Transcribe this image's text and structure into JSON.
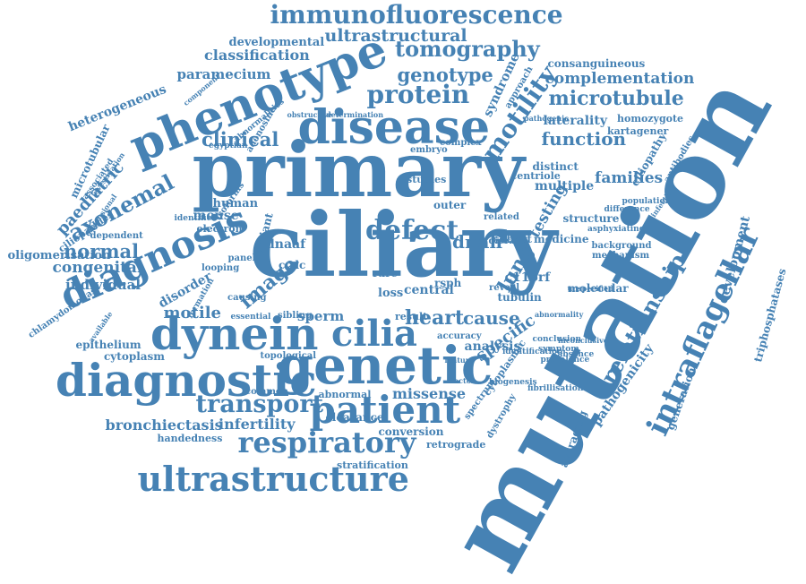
{
  "theme": {
    "word_color": "#4682b4",
    "background": "#ffffff"
  },
  "words": [
    "mutation",
    "ciliary",
    "primary",
    "genetic",
    "diagnostic",
    "phenotype",
    "disease",
    "dynein",
    "diagnosis",
    "patient",
    "ultrastructure",
    "respiratory",
    "cilia",
    "intraflagellar",
    "immunofluorescence",
    "relationship",
    "defect",
    "transport",
    "protein",
    "tomography",
    "function",
    "motility",
    "microtubule",
    "complementation",
    "ultrastructural",
    "genotype",
    "axonemal",
    "paediatric",
    "normal",
    "heart",
    "cause",
    "dnah",
    "families",
    "clinical",
    "classification",
    "paramecium",
    "developmental",
    "laterality",
    "heterogeneous",
    "congenital",
    "individual",
    "motile",
    "bronchiectasis",
    "infertility",
    "missense",
    "lung",
    "triphosphatases",
    "development",
    "pathogenicity",
    "generation",
    "averaging",
    "specific",
    "testing",
    "ciliopathy",
    "syndrome",
    "consanguineous",
    "homozygote",
    "kartagener",
    "microtubular",
    "oligomerisation",
    "chlamydomonas",
    "epithelium",
    "cytoplasm",
    "clearance",
    "handedness",
    "conversion",
    "retrograde",
    "stratification",
    "image",
    "mouse",
    "disorder",
    "variant",
    "sperm",
    "dnaaf",
    "loss",
    "central",
    "analysis",
    "c11orf",
    "tubulin",
    "molecular",
    "structure",
    "multiple",
    "distinct",
    "centriole",
    "cohort",
    "medicine",
    "outer",
    "ccdc",
    "rsph",
    "rare",
    "abnormal",
    "sibling",
    "result",
    "human",
    "isoforms",
    "adenosine",
    "dependent",
    "ciliopathies",
    "identifies",
    "electron",
    "panel",
    "looping",
    "formation",
    "causing",
    "essential",
    "egyptian",
    "complex",
    "embryo",
    "studies",
    "related",
    "reveal",
    "disease",
    "accuracy",
    "spectrum",
    "dystrophy",
    "biogenesis",
    "fibrillisation",
    "conclusion",
    "symptom",
    "absence",
    "prevalence",
    "background",
    "mechanism",
    "asphyxiating",
    "difference",
    "infection",
    "population",
    "antibodies",
    "cytoplasmic",
    "approach",
    "associated",
    "investigation",
    "dimensional",
    "topological",
    "common",
    "component",
    "abnormalities",
    "obstructive",
    "determination",
    "pathogenic",
    "abnormality",
    "available",
    "inconclusive",
    "unspecified",
    "identification",
    "feature",
    "factor",
    "embryonic"
  ]
}
